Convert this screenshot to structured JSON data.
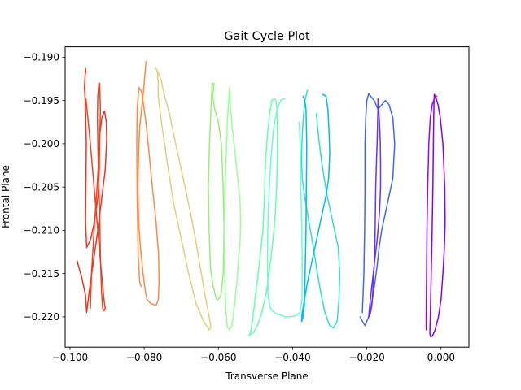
{
  "chart_data": {
    "type": "line",
    "title": "Gait Cycle Plot",
    "xlabel": "Transverse Plane",
    "ylabel": "Frontal Plane",
    "xlim": [
      -0.1013,
      0.0075
    ],
    "ylim": [
      -0.2235,
      -0.1888
    ],
    "grid": false,
    "legend": "none",
    "x_ticks": [
      -0.1,
      -0.08,
      -0.06,
      -0.04,
      -0.02,
      0.0
    ],
    "x_tick_labels": [
      "−0.100",
      "−0.080",
      "−0.060",
      "−0.040",
      "−0.020",
      "0.000"
    ],
    "y_ticks": [
      -0.19,
      -0.195,
      -0.2,
      -0.205,
      -0.21,
      -0.215,
      -0.22
    ],
    "y_tick_labels": [
      "−0.190",
      "−0.195",
      "−0.200",
      "−0.205",
      "−0.210",
      "−0.215",
      "−0.220"
    ],
    "series": [
      {
        "color": "#ee3322",
        "x": [
          -0.0981,
          -0.0968,
          -0.0958,
          -0.0955,
          -0.0953,
          -0.0948,
          -0.0938,
          -0.0925,
          -0.0915,
          -0.0905,
          -0.0901,
          -0.0902,
          -0.0907,
          -0.0914,
          -0.092,
          -0.0921,
          -0.0924,
          -0.0934,
          -0.0944,
          -0.0955,
          -0.0958,
          -0.0957,
          -0.0956,
          -0.0958,
          -0.096,
          -0.0961,
          -0.0959,
          -0.0958,
          -0.0957
        ],
        "y": [
          -0.2135,
          -0.2155,
          -0.2175,
          -0.2195,
          -0.2188,
          -0.217,
          -0.214,
          -0.21,
          -0.2065,
          -0.203,
          -0.1995,
          -0.1975,
          -0.1962,
          -0.197,
          -0.199,
          -0.203,
          -0.206,
          -0.209,
          -0.211,
          -0.212,
          -0.209,
          -0.205,
          -0.2,
          -0.196,
          -0.1942,
          -0.1935,
          -0.192,
          -0.1913,
          -0.1918
        ]
      },
      {
        "color": "#ee4422",
        "x": [
          -0.0957,
          -0.0953,
          -0.0945,
          -0.0935,
          -0.0925,
          -0.0915,
          -0.0907,
          -0.0905,
          -0.0908,
          -0.0912,
          -0.0915,
          -0.0918,
          -0.092,
          -0.0924,
          -0.0926,
          -0.0925,
          -0.0922,
          -0.092,
          -0.0918,
          -0.092,
          -0.0927,
          -0.0935,
          -0.0942,
          -0.0945
        ],
        "y": [
          -0.1948,
          -0.1965,
          -0.2,
          -0.205,
          -0.21,
          -0.215,
          -0.2185,
          -0.219,
          -0.2193,
          -0.219,
          -0.217,
          -0.213,
          -0.208,
          -0.202,
          -0.197,
          -0.1945,
          -0.193,
          -0.193,
          -0.196,
          -0.2,
          -0.205,
          -0.21,
          -0.215,
          -0.219
        ]
      },
      {
        "color": "#ff8844",
        "x": [
          -0.0795,
          -0.0798,
          -0.0802,
          -0.0807,
          -0.0812,
          -0.0815,
          -0.0817,
          -0.0815,
          -0.081,
          -0.0803,
          -0.0797,
          -0.0792,
          -0.0786,
          -0.078,
          -0.0773,
          -0.0767,
          -0.0762,
          -0.076,
          -0.0761,
          -0.0768,
          -0.0778,
          -0.0787,
          -0.0794,
          -0.08,
          -0.0807,
          -0.0814,
          -0.0819,
          -0.082,
          -0.0819,
          -0.0816,
          -0.0812,
          -0.0808
        ],
        "y": [
          -0.1905,
          -0.192,
          -0.194,
          -0.196,
          -0.198,
          -0.201,
          -0.205,
          -0.209,
          -0.212,
          -0.215,
          -0.217,
          -0.218,
          -0.2183,
          -0.2185,
          -0.2186,
          -0.2186,
          -0.218,
          -0.216,
          -0.213,
          -0.209,
          -0.205,
          -0.201,
          -0.198,
          -0.196,
          -0.194,
          -0.1935,
          -0.196,
          -0.2,
          -0.206,
          -0.213,
          -0.216,
          -0.2165
        ]
      },
      {
        "color": "#e0d077",
        "x": [
          -0.077,
          -0.0765,
          -0.0762,
          -0.0762,
          -0.0758,
          -0.0752,
          -0.0745,
          -0.0735,
          -0.072,
          -0.07,
          -0.068,
          -0.066,
          -0.064,
          -0.0625,
          -0.062,
          -0.0625,
          -0.0638,
          -0.065,
          -0.0662,
          -0.0675,
          -0.069,
          -0.0705,
          -0.072,
          -0.0732,
          -0.0745,
          -0.0755,
          -0.0765,
          -0.077,
          -0.0771
        ],
        "y": [
          -0.1913,
          -0.1915,
          -0.193,
          -0.1945,
          -0.196,
          -0.198,
          -0.2,
          -0.203,
          -0.207,
          -0.211,
          -0.215,
          -0.2185,
          -0.2205,
          -0.2215,
          -0.2212,
          -0.22,
          -0.217,
          -0.214,
          -0.211,
          -0.208,
          -0.205,
          -0.202,
          -0.199,
          -0.1965,
          -0.1945,
          -0.1925,
          -0.1915,
          -0.1913,
          -0.1913
        ]
      },
      {
        "color": "#99ee77",
        "x": [
          -0.0612,
          -0.0615,
          -0.061,
          -0.06,
          -0.0592,
          -0.0587,
          -0.0585,
          -0.0587,
          -0.0593,
          -0.06,
          -0.0605,
          -0.0608,
          -0.0614,
          -0.0621,
          -0.0625,
          -0.0627,
          -0.0624,
          -0.062,
          -0.0618,
          -0.0617,
          -0.0616,
          -0.0615
        ],
        "y": [
          -0.193,
          -0.1945,
          -0.196,
          -0.1975,
          -0.2,
          -0.205,
          -0.21,
          -0.215,
          -0.2175,
          -0.218,
          -0.218,
          -0.2175,
          -0.2165,
          -0.2145,
          -0.21,
          -0.205,
          -0.2,
          -0.196,
          -0.194,
          -0.1932,
          -0.193,
          -0.193
        ]
      },
      {
        "color": "#99ff99",
        "x": [
          -0.057,
          -0.0568,
          -0.0563,
          -0.0555,
          -0.0548,
          -0.0543,
          -0.054,
          -0.054,
          -0.0545,
          -0.055,
          -0.0555,
          -0.056,
          -0.0565,
          -0.057,
          -0.0576,
          -0.058,
          -0.0583,
          -0.0585,
          -0.0583,
          -0.058,
          -0.0578,
          -0.0576,
          -0.0573,
          -0.0571,
          -0.057
        ],
        "y": [
          -0.1935,
          -0.1955,
          -0.198,
          -0.201,
          -0.204,
          -0.206,
          -0.208,
          -0.21,
          -0.213,
          -0.216,
          -0.218,
          -0.22,
          -0.2212,
          -0.2215,
          -0.2212,
          -0.219,
          -0.215,
          -0.21,
          -0.206,
          -0.203,
          -0.2,
          -0.1975,
          -0.1955,
          -0.1942,
          -0.1935
        ]
      },
      {
        "color": "#66ffaa",
        "x": [
          -0.0512,
          -0.0505,
          -0.0495,
          -0.0483,
          -0.047,
          -0.0458,
          -0.0448,
          -0.0443,
          -0.0441,
          -0.0441,
          -0.0442,
          -0.0445,
          -0.045,
          -0.0456,
          -0.0462,
          -0.0468,
          -0.0473,
          -0.0476,
          -0.048,
          -0.049,
          -0.05,
          -0.0507,
          -0.0512,
          -0.0515,
          -0.0517,
          -0.0516
        ],
        "y": [
          -0.222,
          -0.2218,
          -0.221,
          -0.2195,
          -0.217,
          -0.213,
          -0.209,
          -0.205,
          -0.201,
          -0.198,
          -0.196,
          -0.195,
          -0.1948,
          -0.195,
          -0.1965,
          -0.199,
          -0.202,
          -0.206,
          -0.21,
          -0.214,
          -0.2175,
          -0.22,
          -0.2215,
          -0.222,
          -0.2222,
          -0.222
        ]
      },
      {
        "color": "#66ffcc",
        "x": [
          -0.0422,
          -0.0432,
          -0.0442,
          -0.0452,
          -0.0459,
          -0.0464,
          -0.0467,
          -0.0468,
          -0.0466,
          -0.046,
          -0.045,
          -0.044,
          -0.043,
          -0.042,
          -0.0408,
          -0.0392,
          -0.038,
          -0.0375,
          -0.0374,
          -0.0375,
          -0.0378,
          -0.038,
          -0.0382
        ],
        "y": [
          -0.1948,
          -0.195,
          -0.196,
          -0.1985,
          -0.202,
          -0.206,
          -0.21,
          -0.214,
          -0.2175,
          -0.219,
          -0.2195,
          -0.2197,
          -0.2198,
          -0.22,
          -0.22,
          -0.2199,
          -0.2195,
          -0.218,
          -0.215,
          -0.21,
          -0.205,
          -0.2,
          -0.1975
        ]
      },
      {
        "color": "#33ddcc",
        "x": [
          -0.036,
          -0.0367,
          -0.0372,
          -0.0375,
          -0.0376,
          -0.0374,
          -0.0368,
          -0.036,
          -0.0352,
          -0.0344,
          -0.0335,
          -0.0325,
          -0.0313,
          -0.03,
          -0.029,
          -0.028,
          -0.0275,
          -0.0273,
          -0.0277,
          -0.0287,
          -0.0297,
          -0.0307,
          -0.0315,
          -0.0322,
          -0.0328,
          -0.0333,
          -0.0336
        ],
        "y": [
          -0.1938,
          -0.195,
          -0.1975,
          -0.2,
          -0.202,
          -0.204,
          -0.206,
          -0.208,
          -0.21,
          -0.212,
          -0.2145,
          -0.217,
          -0.2195,
          -0.221,
          -0.2213,
          -0.2205,
          -0.218,
          -0.215,
          -0.212,
          -0.21,
          -0.208,
          -0.206,
          -0.204,
          -0.202,
          -0.2,
          -0.198,
          -0.1965
        ]
      },
      {
        "color": "#00bbee",
        "x": [
          -0.0318,
          -0.031,
          -0.0305,
          -0.0302,
          -0.03,
          -0.0303,
          -0.031,
          -0.032,
          -0.033,
          -0.034,
          -0.035,
          -0.036,
          -0.0368,
          -0.0374,
          -0.0376,
          -0.0375,
          -0.0372,
          -0.0368,
          -0.0364,
          -0.0362,
          -0.0364,
          -0.0368,
          -0.0372
        ],
        "y": [
          -0.1943,
          -0.1945,
          -0.196,
          -0.1985,
          -0.201,
          -0.204,
          -0.206,
          -0.208,
          -0.21,
          -0.212,
          -0.214,
          -0.216,
          -0.218,
          -0.2195,
          -0.2205,
          -0.2205,
          -0.22,
          -0.2185,
          -0.21,
          -0.2,
          -0.196,
          -0.1948,
          -0.1945
        ]
      },
      {
        "color": "#4466ee",
        "x": [
          -0.0218,
          -0.0212,
          -0.0205,
          -0.0195,
          -0.0185,
          -0.0178,
          -0.0172,
          -0.0167,
          -0.016,
          -0.015,
          -0.014,
          -0.013,
          -0.0125,
          -0.013,
          -0.014,
          -0.015,
          -0.016,
          -0.017,
          -0.018,
          -0.019,
          -0.0195,
          -0.02,
          -0.0203,
          -0.0205,
          -0.0205,
          -0.0206,
          -0.0208,
          -0.0212
        ],
        "y": [
          -0.22,
          -0.2205,
          -0.221,
          -0.22,
          -0.218,
          -0.216,
          -0.214,
          -0.212,
          -0.21,
          -0.208,
          -0.206,
          -0.204,
          -0.2,
          -0.197,
          -0.1955,
          -0.195,
          -0.1955,
          -0.196,
          -0.195,
          -0.1945,
          -0.1942,
          -0.195,
          -0.197,
          -0.2,
          -0.205,
          -0.21,
          -0.215,
          -0.2195
        ]
      },
      {
        "color": "#6633ee",
        "x": [
          -0.017,
          -0.0168,
          -0.0166,
          -0.0164,
          -0.0163,
          -0.0163,
          -0.0166,
          -0.0172,
          -0.018,
          -0.0188,
          -0.0193,
          -0.0195,
          -0.0193,
          -0.019,
          -0.0186,
          -0.0183,
          -0.018,
          -0.0178,
          -0.0177,
          -0.0176,
          -0.0174,
          -0.0172,
          -0.0171,
          -0.017,
          -0.017,
          -0.017
        ],
        "y": [
          -0.1948,
          -0.196,
          -0.1975,
          -0.1995,
          -0.202,
          -0.205,
          -0.208,
          -0.211,
          -0.214,
          -0.217,
          -0.219,
          -0.22,
          -0.22,
          -0.2195,
          -0.2185,
          -0.2165,
          -0.214,
          -0.211,
          -0.208,
          -0.205,
          -0.202,
          -0.1995,
          -0.1975,
          -0.196,
          -0.195,
          -0.1948
        ]
      },
      {
        "color": "#8800ee",
        "x": [
          -0.0018,
          -0.0019,
          -0.002,
          -0.0021,
          -0.0022,
          -0.0024,
          -0.0026,
          -0.0028,
          -0.0029,
          -0.003,
          -0.003,
          -0.0028,
          -0.0023,
          -0.0016,
          -0.0007,
          0.0,
          0.0005,
          0.0009,
          0.0011,
          0.001,
          0.0005,
          -0.0002,
          -0.0008,
          -0.0013,
          -0.0016,
          -0.0018
        ],
        "y": [
          -0.1943,
          -0.195,
          -0.1975,
          -0.201,
          -0.205,
          -0.21,
          -0.214,
          -0.218,
          -0.22,
          -0.2215,
          -0.222,
          -0.2223,
          -0.2222,
          -0.2215,
          -0.22,
          -0.218,
          -0.215,
          -0.212,
          -0.209,
          -0.205,
          -0.2,
          -0.197,
          -0.1955,
          -0.1948,
          -0.1945,
          -0.1943
        ]
      },
      {
        "color": "#9900ff",
        "x": [
          -0.004,
          -0.004,
          -0.0039,
          -0.0038,
          -0.0036,
          -0.0033,
          -0.0029,
          -0.0024,
          -0.0018,
          -0.0012
        ],
        "y": [
          -0.2215,
          -0.22,
          -0.215,
          -0.21,
          -0.205,
          -0.2,
          -0.197,
          -0.1955,
          -0.1948,
          -0.1945
        ]
      }
    ]
  }
}
